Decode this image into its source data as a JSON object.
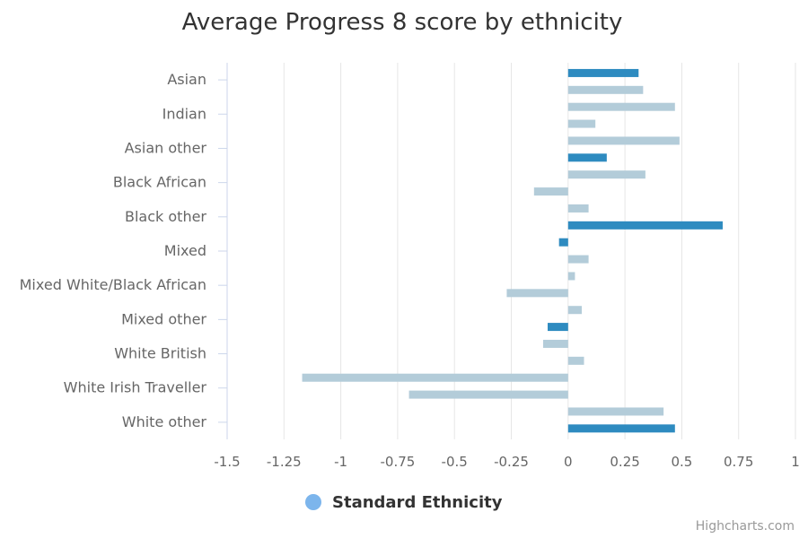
{
  "colors": {
    "standard": "#2e8bc0",
    "detailed": "#b3ccd9",
    "legend": "#7cb5ec",
    "grid": "#e6e6e6",
    "axis": "#ccd6eb",
    "label": "#666666"
  },
  "credits": "Highcharts.com",
  "chart_data": {
    "type": "bar",
    "title": "Average Progress 8 score by ethnicity",
    "xlabel": "",
    "ylabel": "",
    "xlim": [
      -1.5,
      1
    ],
    "x_ticks": [
      "-1.5",
      "-1.25",
      "-1",
      "-0.75",
      "-0.5",
      "-0.25",
      "0",
      "0.25",
      "0.5",
      "0.75",
      "1"
    ],
    "grid": true,
    "legend_position": "bottom-center",
    "legend": [
      "Standard Ethnicity"
    ],
    "categories": [
      "Asian",
      "Indian",
      "Asian other",
      "Black African",
      "Black other",
      "Mixed",
      "Mixed White/Black African",
      "Mixed other",
      "White British",
      "White Irish Traveller",
      "White other"
    ],
    "bars": [
      {
        "value": 0.31,
        "kind": "standard"
      },
      {
        "value": 0.33,
        "kind": "detailed"
      },
      {
        "value": 0.47,
        "kind": "detailed"
      },
      {
        "value": 0.12,
        "kind": "detailed"
      },
      {
        "value": 0.49,
        "kind": "detailed"
      },
      {
        "value": 0.17,
        "kind": "standard"
      },
      {
        "value": 0.34,
        "kind": "detailed"
      },
      {
        "value": -0.15,
        "kind": "detailed"
      },
      {
        "value": 0.09,
        "kind": "detailed"
      },
      {
        "value": 0.68,
        "kind": "standard"
      },
      {
        "value": -0.04,
        "kind": "standard"
      },
      {
        "value": 0.09,
        "kind": "detailed"
      },
      {
        "value": 0.03,
        "kind": "detailed"
      },
      {
        "value": -0.27,
        "kind": "detailed"
      },
      {
        "value": 0.06,
        "kind": "detailed"
      },
      {
        "value": -0.09,
        "kind": "standard"
      },
      {
        "value": -0.11,
        "kind": "detailed"
      },
      {
        "value": 0.07,
        "kind": "detailed"
      },
      {
        "value": -1.17,
        "kind": "detailed"
      },
      {
        "value": -0.7,
        "kind": "detailed"
      },
      {
        "value": 0.42,
        "kind": "detailed"
      },
      {
        "value": 0.47,
        "kind": "standard"
      }
    ]
  }
}
